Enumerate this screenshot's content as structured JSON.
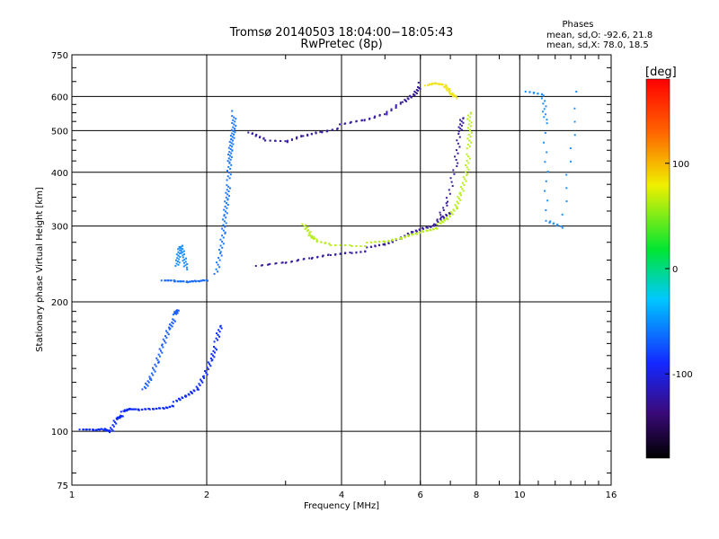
{
  "title": {
    "line1": "Tromsø 20140503 18:04:00−18:05:43",
    "line2": "RwPretec (8p)"
  },
  "phase_info": {
    "heading": "Phases",
    "line1": "mean, sd,O:  -92.6, 21.8",
    "line2": "mean, sd,X:  78.0, 18.5"
  },
  "colorbar": {
    "label": "[deg]",
    "ticks": [
      "100",
      "0",
      "-100"
    ],
    "tick_values": [
      100,
      0,
      -100
    ],
    "range": [
      -180,
      180
    ]
  },
  "chart_data": {
    "type": "scatter",
    "title": "Tromsø 20140503 18:04:00−18:05:43",
    "subtitle": "RwPretec (8p)",
    "xlabel": "Frequency [MHz]",
    "ylabel": "Stationary phase Virtual Height [km]",
    "xscale": "log",
    "yscale": "log",
    "xlim": [
      1,
      16
    ],
    "ylim": [
      75,
      750
    ],
    "xticks": [
      1,
      2,
      4,
      6,
      8,
      10,
      16
    ],
    "xticklabels": [
      "1",
      "2",
      "4",
      "6",
      "8",
      "10",
      "16"
    ],
    "yticks": [
      75,
      100,
      200,
      300,
      400,
      500,
      600,
      750
    ],
    "yticklabels": [
      "75",
      "100",
      "200",
      "300",
      "400",
      "500",
      "600",
      "750"
    ],
    "grid": true,
    "color_variable": "Phase [deg]",
    "series": [
      {
        "color": "#0a28ff",
        "points": [
          [
            1.05,
            100
          ],
          [
            1.12,
            100
          ],
          [
            1.18,
            101
          ],
          [
            1.22,
            100
          ],
          [
            1.26,
            108
          ],
          [
            1.3,
            110
          ],
          [
            1.35,
            112
          ],
          [
            1.4,
            112
          ],
          [
            1.5,
            113
          ],
          [
            1.6,
            114
          ],
          [
            1.7,
            116
          ],
          [
            1.8,
            120
          ],
          [
            1.9,
            125
          ],
          [
            1.98,
            135
          ],
          [
            2.05,
            148
          ],
          [
            2.1,
            160
          ],
          [
            2.15,
            175
          ]
        ]
      },
      {
        "color": "#1e60ff",
        "points": [
          [
            1.45,
            124
          ],
          [
            1.5,
            132
          ],
          [
            1.55,
            145
          ],
          [
            1.6,
            160
          ],
          [
            1.65,
            175
          ],
          [
            1.7,
            185
          ],
          [
            1.72,
            190
          ]
        ]
      },
      {
        "color": "#1a6cff",
        "points": [
          [
            1.6,
            222
          ],
          [
            1.7,
            222
          ],
          [
            1.8,
            222
          ],
          [
            1.9,
            224
          ],
          [
            2.0,
            226
          ]
        ]
      },
      {
        "color": "#1e90ff",
        "points": [
          [
            1.72,
            240
          ],
          [
            1.73,
            255
          ],
          [
            1.75,
            270
          ],
          [
            1.78,
            255
          ],
          [
            1.8,
            240
          ]
        ]
      },
      {
        "color": "#1e78ff",
        "points": [
          [
            2.1,
            230
          ],
          [
            2.15,
            260
          ],
          [
            2.18,
            290
          ],
          [
            2.2,
            320
          ],
          [
            2.22,
            350
          ],
          [
            2.24,
            380
          ],
          [
            2.25,
            420
          ],
          [
            2.26,
            450
          ],
          [
            2.28,
            480
          ],
          [
            2.3,
            510
          ],
          [
            2.3,
            550
          ]
        ]
      },
      {
        "color": "#3a1ea0",
        "points": [
          [
            2.5,
            490
          ],
          [
            2.7,
            472
          ],
          [
            3.0,
            470
          ],
          [
            3.3,
            488
          ],
          [
            3.6,
            500
          ],
          [
            4.0,
            512
          ],
          [
            4.5,
            525
          ],
          [
            5.0,
            545
          ],
          [
            5.5,
            585
          ],
          [
            5.8,
            610
          ],
          [
            6.0,
            640
          ]
        ]
      },
      {
        "color": "#3a1ea0",
        "points": [
          [
            2.6,
            240
          ],
          [
            3.0,
            245
          ],
          [
            3.4,
            252
          ],
          [
            3.8,
            258
          ],
          [
            4.2,
            262
          ],
          [
            4.6,
            265
          ],
          [
            5.0,
            270
          ],
          [
            5.4,
            280
          ],
          [
            5.8,
            292
          ],
          [
            6.2,
            300
          ],
          [
            6.6,
            306
          ],
          [
            7.0,
            320
          ]
        ]
      },
      {
        "color": "#3a1ea0",
        "points": [
          [
            6.5,
            300
          ],
          [
            6.9,
            340
          ],
          [
            7.2,
            420
          ],
          [
            7.35,
            500
          ],
          [
            7.45,
            540
          ]
        ]
      },
      {
        "color": "#b8ee1e",
        "points": [
          [
            3.3,
            300
          ],
          [
            3.4,
            285
          ],
          [
            3.5,
            277
          ],
          [
            3.8,
            272
          ],
          [
            4.2,
            272
          ],
          [
            4.6,
            272
          ],
          [
            5.0,
            274
          ],
          [
            5.4,
            280
          ],
          [
            5.8,
            288
          ],
          [
            6.2,
            295
          ],
          [
            6.6,
            300
          ],
          [
            6.9,
            310
          ],
          [
            7.2,
            330
          ],
          [
            7.4,
            360
          ],
          [
            7.6,
            400
          ],
          [
            7.7,
            450
          ],
          [
            7.75,
            500
          ],
          [
            7.7,
            550
          ]
        ]
      },
      {
        "color": "#f0e61e",
        "points": [
          [
            6.2,
            630
          ],
          [
            6.5,
            640
          ],
          [
            6.8,
            635
          ],
          [
            7.0,
            615
          ],
          [
            7.2,
            600
          ]
        ]
      },
      {
        "color": "#1e90ff",
        "points": [
          [
            10.4,
            610
          ],
          [
            11.3,
            600
          ],
          [
            11.4,
            520
          ],
          [
            11.5,
            310
          ],
          [
            12.4,
            300
          ],
          [
            13.5,
            610
          ]
        ]
      }
    ]
  }
}
